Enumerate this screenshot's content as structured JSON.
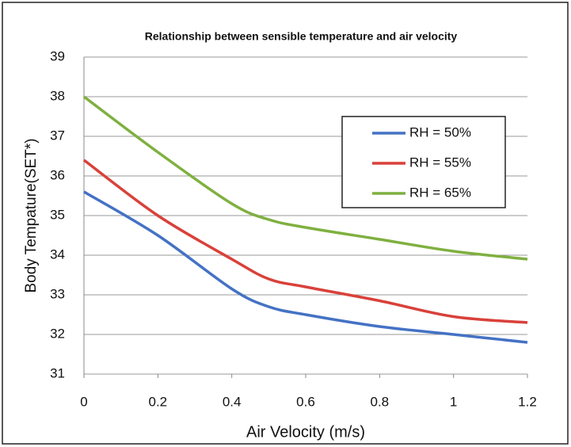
{
  "chart_data": {
    "type": "line",
    "title": "Relationship between sensible temperature and air velocity",
    "x_label": "Air Velocity (m/s)",
    "y_label": "Body Tempature(SET*)",
    "x": [
      0,
      0.2,
      0.4,
      0.5,
      0.6,
      0.8,
      1,
      1.2
    ],
    "series": [
      {
        "name": "RH = 50%",
        "color": "#4472c4",
        "values": [
          35.6,
          34.5,
          33.15,
          32.7,
          32.5,
          32.2,
          32.0,
          31.8
        ]
      },
      {
        "name": "RH = 55%",
        "color": "#d9413a",
        "values": [
          36.4,
          35.0,
          33.9,
          33.4,
          33.2,
          32.85,
          32.45,
          32.3
        ]
      },
      {
        "name": "RH = 65%",
        "color": "#7fb040",
        "values": [
          38.0,
          36.6,
          35.3,
          34.9,
          34.7,
          34.4,
          34.1,
          33.9
        ]
      }
    ],
    "xlim": [
      0,
      1.2
    ],
    "xticks": [
      0,
      0.2,
      0.4,
      0.6,
      0.8,
      1,
      1.2
    ],
    "ylim": [
      31,
      39
    ],
    "yticks": [
      31,
      32,
      33,
      34,
      35,
      36,
      37,
      38,
      39
    ],
    "grid": true,
    "legend": "upper right"
  }
}
